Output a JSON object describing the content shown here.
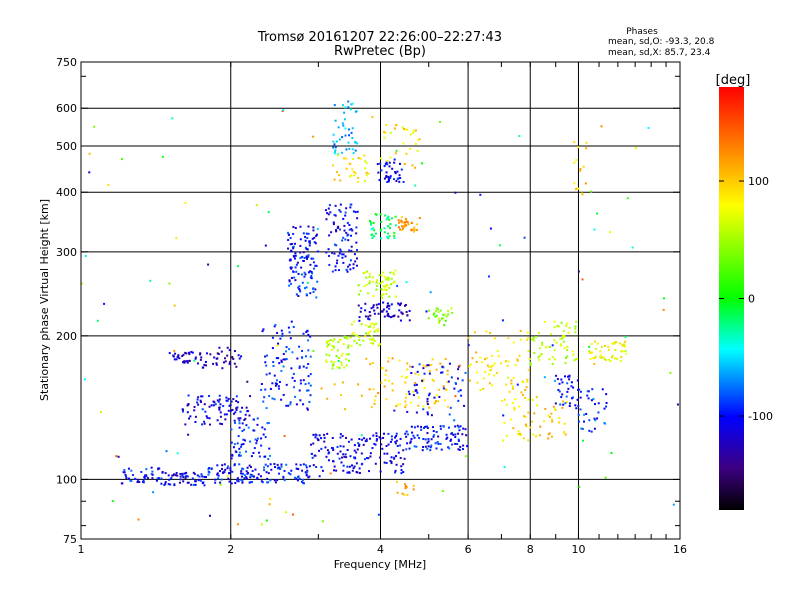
{
  "chart_data": {
    "type": "scatter",
    "title": "Tromsø 20161207 22:26:00–22:27:43",
    "subtitle": "RwPretec (Bp)",
    "xlabel": "Frequency [MHz]",
    "ylabel": "Stationary phase Virtual Height [km]",
    "xscale": "log",
    "yscale": "log",
    "xlim": [
      1,
      16
    ],
    "ylim": [
      75,
      750
    ],
    "xticks": [
      1,
      2,
      4,
      6,
      8,
      10,
      16
    ],
    "xtick_labels": [
      "1",
      "2",
      "4",
      "6",
      "8",
      "10",
      "16"
    ],
    "xgrid": [
      2,
      4,
      6,
      8,
      10
    ],
    "yticks": [
      75,
      100,
      200,
      300,
      400,
      500,
      600,
      750
    ],
    "ytick_labels": [
      "75",
      "100",
      "200",
      "300",
      "400",
      "500",
      "600",
      "750"
    ],
    "ygrid": [
      100,
      200,
      300,
      400,
      500,
      600
    ],
    "grid": true,
    "stats": {
      "heading": "Phases",
      "line_o": "mean, sd,O: -93.3, 20.8",
      "line_x": "mean, sd,X:  85.7, 23.4"
    },
    "colorbar": {
      "label": "[deg]",
      "range": [
        -180,
        180
      ],
      "ticks": [
        100,
        0,
        -100
      ],
      "tick_labels": [
        "100",
        "0",
        "-100"
      ],
      "colors": [
        "#ff0000",
        "#ff8c00",
        "#ffff00",
        "#00ff00",
        "#00ffff",
        "#0000ff",
        "#3c0082",
        "#000000"
      ]
    },
    "point_clusters": [
      {
        "f": [
          1.2,
          1.45
        ],
        "h": [
          98,
          106
        ],
        "phase": -100,
        "n": 40
      },
      {
        "f": [
          1.45,
          1.8
        ],
        "h": [
          97,
          104
        ],
        "phase": -105,
        "n": 60
      },
      {
        "f": [
          1.8,
          2.9
        ],
        "h": [
          98,
          108
        ],
        "phase": -100,
        "n": 140
      },
      {
        "f": [
          2.9,
          4.5
        ],
        "h": [
          103,
          125
        ],
        "phase": -110,
        "n": 160
      },
      {
        "f": [
          4.5,
          6.0
        ],
        "h": [
          115,
          130
        ],
        "phase": -100,
        "n": 90
      },
      {
        "f": [
          1.5,
          1.75
        ],
        "h": [
          175,
          185
        ],
        "phase": -120,
        "n": 35
      },
      {
        "f": [
          1.75,
          2.1
        ],
        "h": [
          170,
          190
        ],
        "phase": -125,
        "n": 35
      },
      {
        "f": [
          1.6,
          2.2
        ],
        "h": [
          130,
          150
        ],
        "phase": -110,
        "n": 90
      },
      {
        "f": [
          2.0,
          2.4
        ],
        "h": [
          110,
          135
        ],
        "phase": -95,
        "n": 60
      },
      {
        "f": [
          2.3,
          2.9
        ],
        "h": [
          140,
          215
        ],
        "phase": -95,
        "n": 110
      },
      {
        "f": [
          2.6,
          3.0
        ],
        "h": [
          240,
          340
        ],
        "phase": -100,
        "n": 120
      },
      {
        "f": [
          3.1,
          3.6
        ],
        "h": [
          270,
          380
        ],
        "phase": -105,
        "n": 90
      },
      {
        "f": [
          3.1,
          3.5
        ],
        "h": [
          170,
          200
        ],
        "phase": 55,
        "n": 50
      },
      {
        "f": [
          3.5,
          4.0
        ],
        "h": [
          190,
          215
        ],
        "phase": 60,
        "n": 40
      },
      {
        "f": [
          3.6,
          4.6
        ],
        "h": [
          215,
          235
        ],
        "phase": -120,
        "n": 60
      },
      {
        "f": [
          3.6,
          4.3
        ],
        "h": [
          240,
          275
        ],
        "phase": 60,
        "n": 60
      },
      {
        "f": [
          3.8,
          4.3
        ],
        "h": [
          320,
          360
        ],
        "phase": -20,
        "n": 40
      },
      {
        "f": [
          4.3,
          4.8
        ],
        "h": [
          330,
          355
        ],
        "phase": 120,
        "n": 35
      },
      {
        "f": [
          3.9,
          4.5
        ],
        "h": [
          420,
          470
        ],
        "phase": -110,
        "n": 40
      },
      {
        "f": [
          3.2,
          3.6
        ],
        "h": [
          480,
          620
        ],
        "phase": -60,
        "n": 45
      },
      {
        "f": [
          4.0,
          4.8
        ],
        "h": [
          450,
          560
        ],
        "phase": 90,
        "n": 30
      },
      {
        "f": [
          3.2,
          3.8
        ],
        "h": [
          420,
          480
        ],
        "phase": 90,
        "n": 30
      },
      {
        "f": [
          4.0,
          5.5
        ],
        "h": [
          140,
          180
        ],
        "phase": 100,
        "n": 70
      },
      {
        "f": [
          4.5,
          6.0
        ],
        "h": [
          135,
          175
        ],
        "phase": -100,
        "n": 55
      },
      {
        "f": [
          5.0,
          5.6
        ],
        "h": [
          210,
          230
        ],
        "phase": 40,
        "n": 25
      },
      {
        "f": [
          6.0,
          8.0
        ],
        "h": [
          150,
          205
        ],
        "phase": 90,
        "n": 70
      },
      {
        "f": [
          7.0,
          9.5
        ],
        "h": [
          120,
          150
        ],
        "phase": 95,
        "n": 60
      },
      {
        "f": [
          8.0,
          10.0
        ],
        "h": [
          170,
          215
        ],
        "phase": 60,
        "n": 60
      },
      {
        "f": [
          9.0,
          10.0
        ],
        "h": [
          140,
          165
        ],
        "phase": -100,
        "n": 35
      },
      {
        "f": [
          10.5,
          12.5
        ],
        "h": [
          175,
          195
        ],
        "phase": 80,
        "n": 50
      },
      {
        "f": [
          10.0,
          11.5
        ],
        "h": [
          125,
          155
        ],
        "phase": -90,
        "n": 35
      },
      {
        "f": [
          9.8,
          10.4
        ],
        "h": [
          380,
          520
        ],
        "phase": 100,
        "n": 15
      },
      {
        "f": [
          3.0,
          4.0
        ],
        "h": [
          140,
          160
        ],
        "phase": 110,
        "n": 15
      },
      {
        "f": [
          4.3,
          4.8
        ],
        "h": [
          92,
          100
        ],
        "phase": 110,
        "n": 12
      },
      {
        "f": [
          1.0,
          16.0
        ],
        "h": [
          80,
          600
        ],
        "phase": 0,
        "n": 120,
        "random_phase": true
      }
    ]
  }
}
